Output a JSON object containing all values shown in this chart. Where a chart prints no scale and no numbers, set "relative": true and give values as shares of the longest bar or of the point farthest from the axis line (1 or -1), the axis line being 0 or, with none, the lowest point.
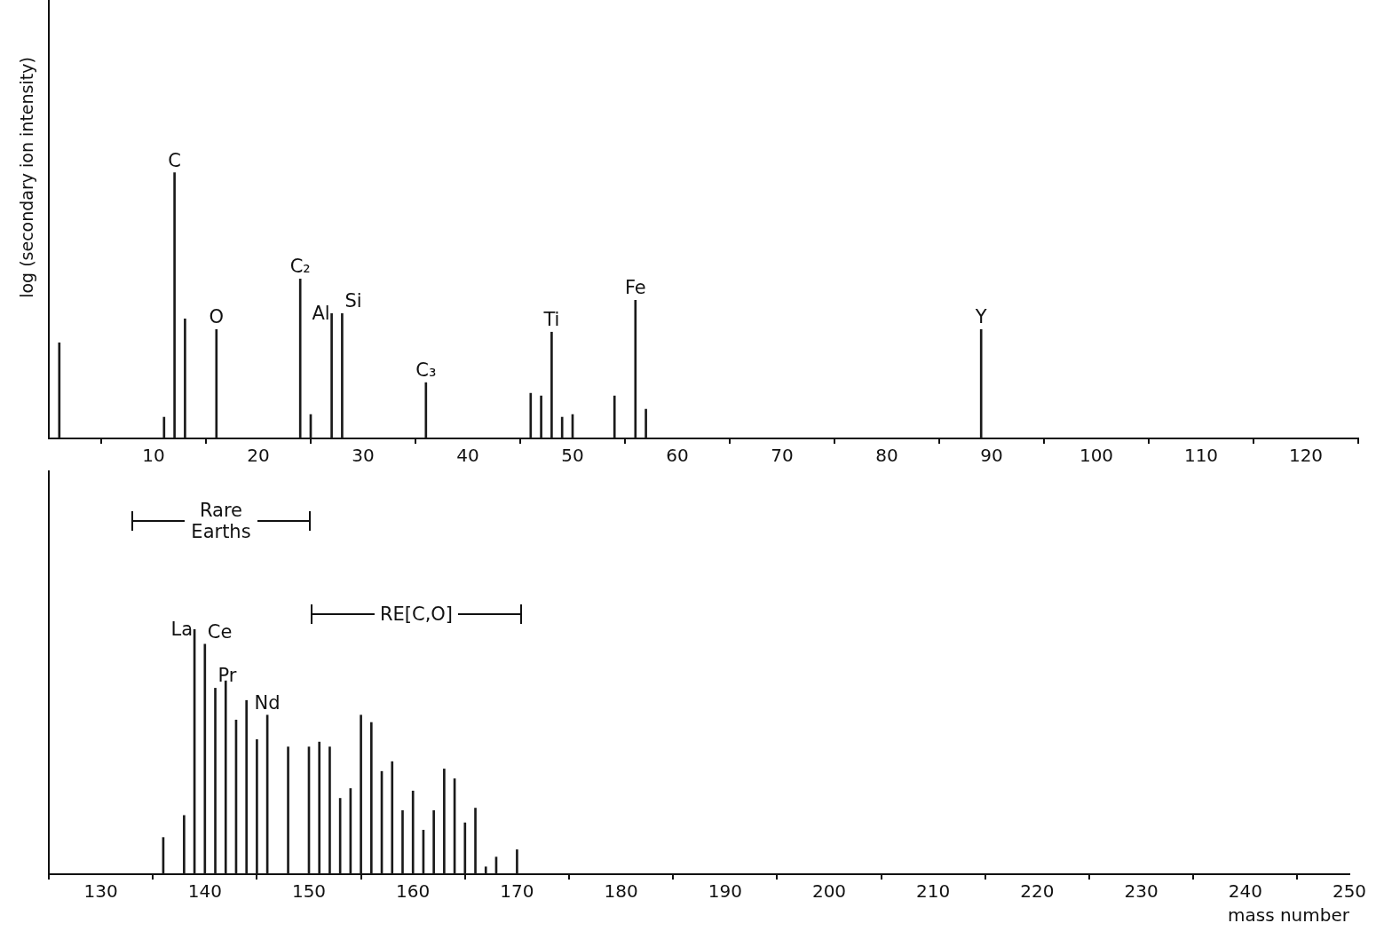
{
  "chart_data": [
    {
      "type": "bar",
      "relative": true,
      "ylabel": "log (secondary ion intensity)",
      "xlim": [
        0,
        125
      ],
      "xticks": [
        10,
        20,
        30,
        40,
        50,
        60,
        70,
        80,
        90,
        100,
        110,
        120
      ],
      "grid": false,
      "legend": false,
      "color": "#1a1a1a",
      "x": [
        1,
        11,
        12,
        13,
        16,
        24,
        25,
        27,
        28,
        36,
        46,
        47,
        48,
        49,
        50,
        54,
        56,
        57,
        89
      ],
      "values": [
        0.36,
        0.08,
        1.0,
        0.45,
        0.41,
        0.6,
        0.09,
        0.47,
        0.47,
        0.21,
        0.17,
        0.16,
        0.4,
        0.08,
        0.09,
        0.16,
        0.52,
        0.11,
        0.41
      ],
      "annotations": [
        {
          "text": "C",
          "x": 12,
          "y": 1.0
        },
        {
          "text": "O",
          "x": 16,
          "y": 0.41
        },
        {
          "text": "C₂",
          "x": 24,
          "y": 0.6
        },
        {
          "text": "Al",
          "x": 27,
          "y": 0.47
        },
        {
          "text": "Si",
          "x": 28,
          "y": 0.47
        },
        {
          "text": "C₃",
          "x": 36,
          "y": 0.21
        },
        {
          "text": "Ti",
          "x": 48,
          "y": 0.4
        },
        {
          "text": "Fe",
          "x": 56,
          "y": 0.52
        },
        {
          "text": "Y",
          "x": 89,
          "y": 0.41
        }
      ]
    },
    {
      "type": "bar",
      "relative": true,
      "xlabel": "mass number",
      "xlim": [
        125,
        250
      ],
      "xticks": [
        130,
        140,
        150,
        160,
        170,
        180,
        190,
        200,
        210,
        220,
        230,
        240,
        250
      ],
      "grid": false,
      "legend": false,
      "color": "#1a1a1a",
      "x": [
        136,
        138,
        139,
        140,
        141,
        142,
        143,
        144,
        145,
        146,
        148,
        150,
        151,
        152,
        153,
        154,
        155,
        156,
        157,
        158,
        159,
        160,
        161,
        162,
        163,
        164,
        165,
        166,
        167,
        168,
        170
      ],
      "values": [
        0.15,
        0.24,
        1.0,
        0.94,
        0.76,
        0.79,
        0.63,
        0.71,
        0.55,
        0.65,
        0.52,
        0.52,
        0.54,
        0.52,
        0.31,
        0.35,
        0.65,
        0.62,
        0.42,
        0.46,
        0.26,
        0.34,
        0.18,
        0.26,
        0.43,
        0.39,
        0.21,
        0.27,
        0.03,
        0.07,
        0.1
      ],
      "annotations": [
        {
          "text": "La",
          "x": 139,
          "y": 1.0
        },
        {
          "text": "Ce",
          "x": 140,
          "y": 0.94
        },
        {
          "text": "Pr",
          "x": 141,
          "y": 0.76
        },
        {
          "text": "Nd",
          "x": 146,
          "y": 0.65
        },
        "Rare Earths",
        "RE[C,O]"
      ]
    }
  ]
}
